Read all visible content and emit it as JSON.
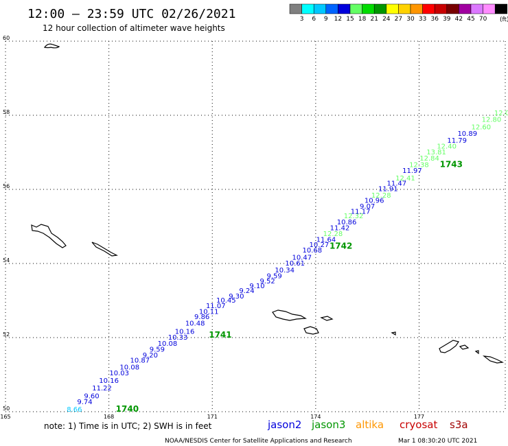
{
  "header": {
    "title": "12:00 – 23:59 UTC 02/26/2021",
    "subtitle": "12 hour collection of altimeter wave heights"
  },
  "colorbar": {
    "unit": "(ft)",
    "bins": [
      {
        "color": "#808080",
        "label": ""
      },
      {
        "color": "#00ffff",
        "label": "3"
      },
      {
        "color": "#00c8ff",
        "label": "6"
      },
      {
        "color": "#0064ff",
        "label": "9"
      },
      {
        "color": "#0000dc",
        "label": "12"
      },
      {
        "color": "#64ff64",
        "label": "15"
      },
      {
        "color": "#00dc00",
        "label": "18"
      },
      {
        "color": "#009600",
        "label": "21"
      },
      {
        "color": "#ffff00",
        "label": "24"
      },
      {
        "color": "#ffd200",
        "label": "27"
      },
      {
        "color": "#ff9600",
        "label": "30"
      },
      {
        "color": "#ff0000",
        "label": "33"
      },
      {
        "color": "#c80000",
        "label": "36"
      },
      {
        "color": "#780000",
        "label": "39"
      },
      {
        "color": "#a000a0",
        "label": "42"
      },
      {
        "color": "#dc78ff",
        "label": "45"
      },
      {
        "color": "#ff8cff",
        "label": "70"
      },
      {
        "color": "#000000",
        "label": ""
      }
    ]
  },
  "map": {
    "lon_range": [
      165,
      179.5
    ],
    "lat_range": [
      50,
      60
    ],
    "lon_ticks": [
      {
        "value": 165,
        "label": "165"
      },
      {
        "value": 168,
        "label": "168"
      },
      {
        "value": 171,
        "label": "171"
      },
      {
        "value": 174,
        "label": "174"
      },
      {
        "value": 177,
        "label": "177"
      }
    ],
    "lat_ticks": [
      {
        "value": 50,
        "label": "50"
      },
      {
        "value": 52,
        "label": "52"
      },
      {
        "value": 54,
        "label": "54"
      },
      {
        "value": 56,
        "label": "56"
      },
      {
        "value": 58,
        "label": "58"
      },
      {
        "value": 60,
        "label": "60"
      }
    ]
  },
  "wave_points": [
    {
      "lon": 167.0,
      "lat": 50.0,
      "value": "8.66",
      "color": "#00c8ff"
    },
    {
      "lon": 167.3,
      "lat": 50.2,
      "value": "9.74",
      "color": "#0000dc"
    },
    {
      "lon": 167.5,
      "lat": 50.36,
      "value": "9.60",
      "color": "#0000dc"
    },
    {
      "lon": 167.8,
      "lat": 50.57,
      "value": "11.22",
      "color": "#0000dc"
    },
    {
      "lon": 168.0,
      "lat": 50.78,
      "value": "10.16",
      "color": "#0000dc"
    },
    {
      "lon": 168.3,
      "lat": 50.98,
      "value": "10.03",
      "color": "#0000dc"
    },
    {
      "lon": 168.6,
      "lat": 51.14,
      "value": "10.08",
      "color": "#0000dc"
    },
    {
      "lon": 168.9,
      "lat": 51.32,
      "value": "10.87",
      "color": "#0000dc"
    },
    {
      "lon": 169.2,
      "lat": 51.46,
      "value": "9.20",
      "color": "#0000dc"
    },
    {
      "lon": 169.4,
      "lat": 51.62,
      "value": "9.59",
      "color": "#0000dc"
    },
    {
      "lon": 169.7,
      "lat": 51.78,
      "value": "10.08",
      "color": "#0000dc"
    },
    {
      "lon": 170.0,
      "lat": 51.94,
      "value": "10.33",
      "color": "#0000dc"
    },
    {
      "lon": 170.2,
      "lat": 52.1,
      "value": "10.16",
      "color": "#0000dc"
    },
    {
      "lon": 170.5,
      "lat": 52.32,
      "value": "10.48",
      "color": "#0000dc"
    },
    {
      "lon": 170.7,
      "lat": 52.5,
      "value": "9.86",
      "color": "#0000dc"
    },
    {
      "lon": 170.9,
      "lat": 52.64,
      "value": "10.11",
      "color": "#0000dc"
    },
    {
      "lon": 171.1,
      "lat": 52.8,
      "value": "11.07",
      "color": "#0000dc"
    },
    {
      "lon": 171.4,
      "lat": 52.94,
      "value": "10.45",
      "color": "#0000dc"
    },
    {
      "lon": 171.7,
      "lat": 53.06,
      "value": "9.30",
      "color": "#0000dc"
    },
    {
      "lon": 172.0,
      "lat": 53.2,
      "value": "9.24",
      "color": "#0000dc"
    },
    {
      "lon": 172.3,
      "lat": 53.33,
      "value": "9.10",
      "color": "#0000dc"
    },
    {
      "lon": 172.6,
      "lat": 53.46,
      "value": "9.52",
      "color": "#0000dc"
    },
    {
      "lon": 172.8,
      "lat": 53.6,
      "value": "9.59",
      "color": "#0000dc"
    },
    {
      "lon": 173.1,
      "lat": 53.76,
      "value": "10.34",
      "color": "#0000dc"
    },
    {
      "lon": 173.4,
      "lat": 53.94,
      "value": "10.61",
      "color": "#0000dc"
    },
    {
      "lon": 173.6,
      "lat": 54.1,
      "value": "10.47",
      "color": "#0000dc"
    },
    {
      "lon": 173.9,
      "lat": 54.3,
      "value": "10.68",
      "color": "#0000dc"
    },
    {
      "lon": 174.1,
      "lat": 54.44,
      "value": "10.27",
      "color": "#0000dc"
    },
    {
      "lon": 174.3,
      "lat": 54.58,
      "value": "11.64",
      "color": "#0000dc"
    },
    {
      "lon": 174.5,
      "lat": 54.74,
      "value": "12.28",
      "color": "#64ff64"
    },
    {
      "lon": 174.7,
      "lat": 54.9,
      "value": "11.42",
      "color": "#0000dc"
    },
    {
      "lon": 174.9,
      "lat": 55.06,
      "value": "10.86",
      "color": "#0000dc"
    },
    {
      "lon": 175.1,
      "lat": 55.22,
      "value": "12.32",
      "color": "#64ff64"
    },
    {
      "lon": 175.3,
      "lat": 55.34,
      "value": "11.17",
      "color": "#0000dc"
    },
    {
      "lon": 175.5,
      "lat": 55.48,
      "value": "9.07",
      "color": "#0000dc"
    },
    {
      "lon": 175.7,
      "lat": 55.64,
      "value": "10.96",
      "color": "#0000dc"
    },
    {
      "lon": 175.9,
      "lat": 55.78,
      "value": "12.28",
      "color": "#64ff64"
    },
    {
      "lon": 176.1,
      "lat": 55.95,
      "value": "11.91",
      "color": "#0000dc"
    },
    {
      "lon": 176.35,
      "lat": 56.1,
      "value": "11.47",
      "color": "#0000dc"
    },
    {
      "lon": 176.6,
      "lat": 56.24,
      "value": "12.41",
      "color": "#64ff64"
    },
    {
      "lon": 176.8,
      "lat": 56.44,
      "value": "11.97",
      "color": "#0000dc"
    },
    {
      "lon": 177.0,
      "lat": 56.6,
      "value": "12.38",
      "color": "#64ff64"
    },
    {
      "lon": 177.3,
      "lat": 56.78,
      "value": "12.84",
      "color": "#64ff64"
    },
    {
      "lon": 177.5,
      "lat": 56.94,
      "value": "13.81",
      "color": "#64ff64"
    },
    {
      "lon": 177.8,
      "lat": 57.1,
      "value": "12.40",
      "color": "#64ff64"
    },
    {
      "lon": 178.1,
      "lat": 57.26,
      "value": "11.79",
      "color": "#0000dc"
    },
    {
      "lon": 178.4,
      "lat": 57.44,
      "value": "10.89",
      "color": "#0000dc"
    },
    {
      "lon": 178.8,
      "lat": 57.62,
      "value": "12.60",
      "color": "#64ff64"
    },
    {
      "lon": 179.1,
      "lat": 57.82,
      "value": "12.80",
      "color": "#64ff64"
    },
    {
      "lon": 179.4,
      "lat": 58.0,
      "value": "12.0",
      "color": "#64ff64"
    }
  ],
  "time_labels": [
    {
      "lon": 168.2,
      "lat": 50.0,
      "text": "1740",
      "color": "#009600"
    },
    {
      "lon": 170.9,
      "lat": 52.0,
      "text": "1741",
      "color": "#009600"
    },
    {
      "lon": 174.4,
      "lat": 54.4,
      "text": "1742",
      "color": "#009600"
    },
    {
      "lon": 177.6,
      "lat": 56.6,
      "text": "1743",
      "color": "#009600"
    }
  ],
  "footer": {
    "note": "note:  1) Time is in UTC;  2) SWH is in feet",
    "satellites": [
      {
        "name": "jason2",
        "color": "#0000dc"
      },
      {
        "name": "jason3",
        "color": "#009600"
      },
      {
        "name": "altika",
        "color": "#ff9600"
      },
      {
        "name": "cryosat",
        "color": "#c80000"
      },
      {
        "name": "s3a",
        "color": "#a00000"
      }
    ],
    "credit": "NOAA/NESDIS Center for Satellite Applications and Research",
    "timestamp": "Mar  1 08:30:20 UTC 2021"
  }
}
